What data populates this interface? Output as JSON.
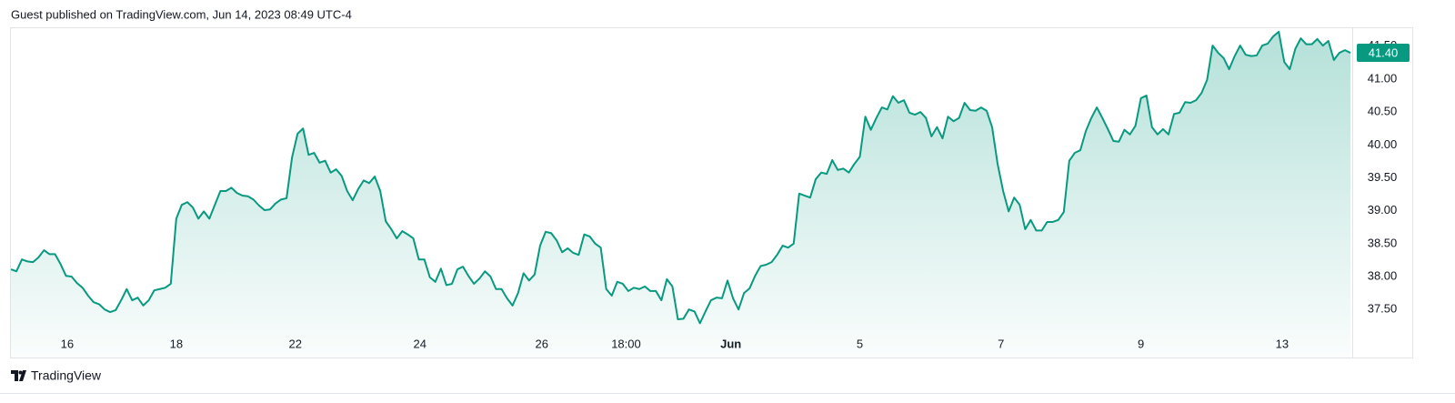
{
  "header": "Guest published on TradingView.com, Jun 14, 2023 08:49 UTC-4",
  "footer": "TradingView",
  "chart_data": {
    "type": "area",
    "color": "#089981",
    "xlim": [
      0,
      243
    ],
    "xticks": [
      {
        "value": 10.2,
        "label": "16"
      },
      {
        "value": 30,
        "label": "18"
      },
      {
        "value": 51.6,
        "label": "22"
      },
      {
        "value": 74.2,
        "label": "24"
      },
      {
        "value": 96.3,
        "label": "26"
      },
      {
        "value": 111.6,
        "label": "18:00"
      },
      {
        "value": 130.6,
        "label": "Jun"
      },
      {
        "value": 154,
        "label": "5"
      },
      {
        "value": 179.6,
        "label": "7"
      },
      {
        "value": 205,
        "label": "9"
      },
      {
        "value": 230.6,
        "label": "13"
      }
    ],
    "ylim": [
      36.77,
      41.76
    ],
    "yticks": [
      {
        "value": 37.5,
        "label": "37.50"
      },
      {
        "value": 38,
        "label": "38.00"
      },
      {
        "value": 38.5,
        "label": "38.50"
      },
      {
        "value": 39,
        "label": "39.00"
      },
      {
        "value": 39.5,
        "label": "39.50"
      },
      {
        "value": 40,
        "label": "40.00"
      },
      {
        "value": 40.5,
        "label": "40.50"
      },
      {
        "value": 41,
        "label": "41.00"
      },
      {
        "value": 41.5,
        "label": "41.50"
      }
    ],
    "last_value": 41.4,
    "last_value_label": "41.40",
    "values": [
      38.11,
      38.08,
      38.26,
      38.23,
      38.22,
      38.29,
      38.4,
      38.34,
      38.34,
      38.19,
      38.01,
      38.0,
      37.9,
      37.83,
      37.71,
      37.61,
      37.58,
      37.5,
      37.46,
      37.49,
      37.64,
      37.81,
      37.64,
      37.68,
      37.56,
      37.64,
      37.79,
      37.81,
      37.83,
      37.89,
      38.88,
      39.09,
      39.13,
      39.05,
      38.88,
      38.99,
      38.88,
      39.09,
      39.3,
      39.3,
      39.35,
      39.27,
      39.23,
      39.22,
      39.17,
      39.08,
      39.01,
      39.02,
      39.11,
      39.17,
      39.19,
      39.81,
      40.17,
      40.25,
      39.85,
      39.88,
      39.73,
      39.76,
      39.58,
      39.63,
      39.53,
      39.3,
      39.16,
      39.33,
      39.46,
      39.42,
      39.52,
      39.3,
      38.84,
      38.72,
      38.58,
      38.69,
      38.64,
      38.58,
      38.26,
      38.26,
      37.99,
      37.92,
      38.12,
      37.87,
      37.89,
      38.11,
      38.15,
      38.01,
      37.89,
      37.97,
      38.08,
      38.0,
      37.81,
      37.81,
      37.67,
      37.56,
      37.75,
      38.05,
      37.94,
      38.03,
      38.47,
      38.68,
      38.66,
      38.55,
      38.37,
      38.43,
      38.36,
      38.33,
      38.64,
      38.61,
      38.5,
      38.44,
      37.81,
      37.71,
      37.92,
      37.89,
      37.78,
      37.83,
      37.81,
      37.85,
      37.78,
      37.78,
      37.64,
      37.96,
      37.85,
      37.35,
      37.36,
      37.5,
      37.47,
      37.29,
      37.47,
      37.64,
      37.68,
      37.67,
      37.94,
      37.67,
      37.5,
      37.75,
      37.82,
      38.01,
      38.16,
      38.18,
      38.22,
      38.33,
      38.47,
      38.44,
      38.5,
      39.26,
      39.23,
      39.2,
      39.48,
      39.58,
      39.56,
      39.77,
      39.62,
      39.64,
      39.58,
      39.71,
      39.82,
      40.43,
      40.23,
      40.41,
      40.57,
      40.54,
      40.74,
      40.64,
      40.68,
      40.49,
      40.46,
      40.5,
      40.41,
      40.13,
      40.27,
      40.1,
      40.43,
      40.36,
      40.41,
      40.64,
      40.53,
      40.52,
      40.57,
      40.52,
      40.27,
      39.71,
      39.3,
      38.99,
      39.2,
      39.09,
      38.72,
      38.86,
      38.7,
      38.7,
      38.83,
      38.83,
      38.86,
      38.98,
      39.76,
      39.88,
      39.92,
      40.21,
      40.41,
      40.57,
      40.41,
      40.24,
      40.06,
      40.05,
      40.23,
      40.16,
      40.29,
      40.71,
      40.75,
      40.27,
      40.16,
      40.24,
      40.16,
      40.47,
      40.49,
      40.65,
      40.64,
      40.68,
      40.79,
      40.99,
      41.51,
      41.4,
      41.32,
      41.15,
      41.35,
      41.51,
      41.37,
      41.35,
      41.36,
      41.51,
      41.54,
      41.65,
      41.72,
      41.26,
      41.15,
      41.46,
      41.62,
      41.53,
      41.53,
      41.61,
      41.51,
      41.58,
      41.29,
      41.4,
      41.44,
      41.4
    ]
  }
}
